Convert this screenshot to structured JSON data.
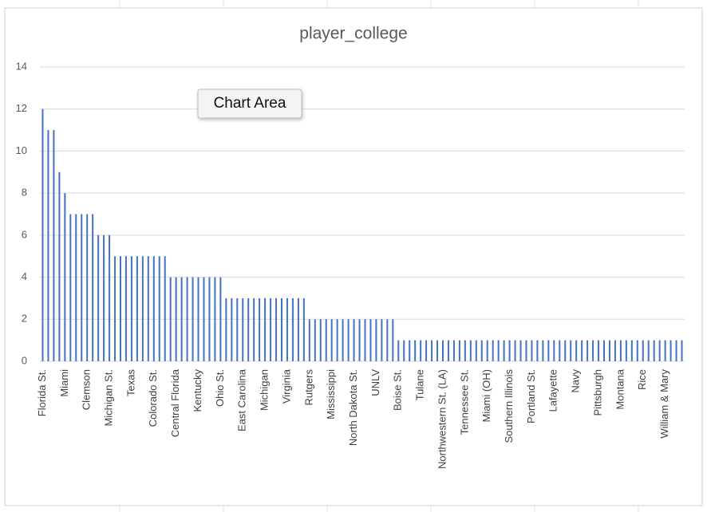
{
  "tooltip": "Chart Area",
  "chart_data": {
    "type": "bar",
    "title": "player_college",
    "color": "#4472c4",
    "grid": true,
    "ylim": [
      0,
      14
    ],
    "yticks": [
      0,
      2,
      4,
      6,
      8,
      10,
      12,
      14
    ],
    "categories": [
      "Florida St.",
      null,
      null,
      null,
      "Miami",
      null,
      null,
      null,
      "Clemson",
      null,
      null,
      null,
      "Michigan St.",
      null,
      null,
      null,
      "Texas",
      null,
      null,
      null,
      "Colorado St.",
      null,
      null,
      null,
      "Central Florida",
      null,
      null,
      null,
      "Kentucky",
      null,
      null,
      null,
      "Ohio St.",
      null,
      null,
      null,
      "East Carolina",
      null,
      null,
      null,
      "Michigan",
      null,
      null,
      null,
      "Virginia",
      null,
      null,
      null,
      "Rutgers",
      null,
      null,
      null,
      "Mississippi",
      null,
      null,
      null,
      "North Dakota St.",
      null,
      null,
      null,
      "UNLV",
      null,
      null,
      null,
      "Boise St.",
      null,
      null,
      null,
      "Tulane",
      null,
      null,
      null,
      "Northwestern St. (LA)",
      null,
      null,
      null,
      "Tennessee St.",
      null,
      null,
      null,
      "Miami (OH)",
      null,
      null,
      null,
      "Southern Illinois",
      null,
      null,
      null,
      "Portland St.",
      null,
      null,
      null,
      "Lafayette",
      null,
      null,
      null,
      "Navy",
      null,
      null,
      null,
      "Pittsburgh",
      null,
      null,
      null,
      "Montana",
      null,
      null,
      null,
      "Rice",
      null,
      null,
      null,
      "William & Mary",
      null,
      null,
      null
    ],
    "values": [
      12,
      11,
      11,
      9,
      8,
      7,
      7,
      7,
      7,
      7,
      6,
      6,
      6,
      5,
      5,
      5,
      5,
      5,
      5,
      5,
      5,
      5,
      5,
      4,
      4,
      4,
      4,
      4,
      4,
      4,
      4,
      4,
      4,
      3,
      3,
      3,
      3,
      3,
      3,
      3,
      3,
      3,
      3,
      3,
      3,
      3,
      3,
      3,
      2,
      2,
      2,
      2,
      2,
      2,
      2,
      2,
      2,
      2,
      2,
      2,
      2,
      2,
      2,
      2,
      1,
      1,
      1,
      1,
      1,
      1,
      1,
      1,
      1,
      1,
      1,
      1,
      1,
      1,
      1,
      1,
      1,
      1,
      1,
      1,
      1,
      1,
      1,
      1,
      1,
      1,
      1,
      1,
      1,
      1,
      1,
      1,
      1,
      1,
      1,
      1,
      1,
      1,
      1,
      1,
      1,
      1,
      1,
      1,
      1,
      1,
      1,
      1,
      1,
      1,
      1,
      1
    ]
  }
}
